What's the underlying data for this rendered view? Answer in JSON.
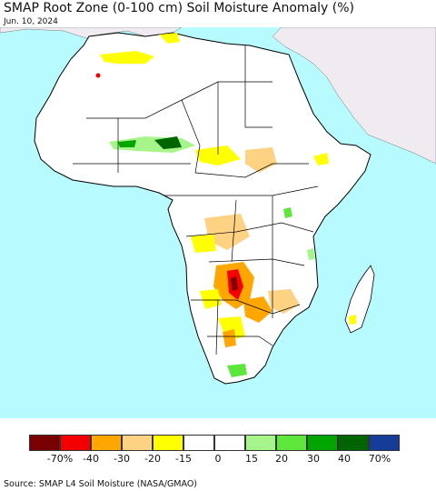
{
  "title": "SMAP Root Zone (0-100 cm) Soil Moisture Anomaly (%)",
  "date": "Jun. 10, 2024",
  "source": "Source: SMAP L4 Soil Moisture (NASA/GMAO)",
  "legend": {
    "colors": [
      "#780000",
      "#f50000",
      "#ffa600",
      "#fdd283",
      "#ffff00",
      "#ffffff",
      "#ffffff",
      "#a5f58a",
      "#5fe63c",
      "#00a500",
      "#006400",
      "#163c99"
    ],
    "ticks": [
      "-70%",
      "-40",
      "-30",
      "-20",
      "-15",
      "0",
      "15",
      "20",
      "30",
      "40",
      "70%"
    ]
  },
  "map": {
    "ocean_color": "#b7fbff",
    "land_color": "#ffffff",
    "nodata_color": "#efebf1",
    "border_color": "#000000"
  }
}
